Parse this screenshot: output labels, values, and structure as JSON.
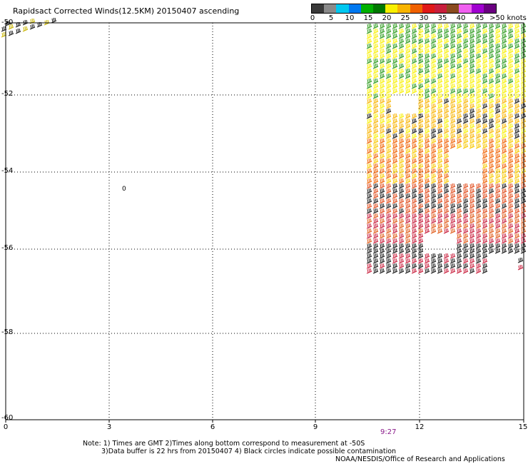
{
  "title": "Rapidsact Corrected Winds(12.5KM) 20150407 ascending",
  "colorbar": {
    "colors": [
      "#3a3a3a",
      "#8a8a8a",
      "#00c8f0",
      "#0078f0",
      "#00b000",
      "#007800",
      "#f8f000",
      "#f8b400",
      "#f06000",
      "#e01818",
      "#c81e3c",
      "#8a4a1e",
      "#f060f0",
      "#a000d0",
      "#6a0080"
    ],
    "labels": [
      "0",
      "5",
      "10",
      "15",
      "20",
      "25",
      "30",
      "35",
      "40",
      "45",
      ">50 knots"
    ]
  },
  "axes": {
    "x_ticks": [
      "0",
      "3",
      "6",
      "9",
      "12",
      "15"
    ],
    "y_ticks": [
      "-50",
      "-52",
      "-54",
      "-56",
      "-58",
      "-60"
    ]
  },
  "time_marker": "9:27",
  "isolated_mark": "0",
  "notes": {
    "line1": "Note: 1) Times are GMT 2)Times along bottom correspond to measurement at -50S",
    "line2": "3)Data buffer is 22 hrs from 20150407 4) Black circles indicate possible contamination",
    "line3": "NOAA/NESDIS/Office of Research and Applications"
  }
}
